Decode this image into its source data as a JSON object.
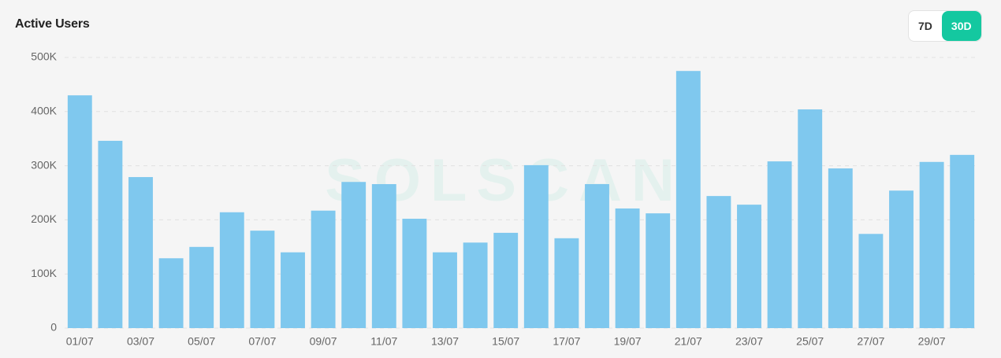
{
  "chart_data": {
    "type": "bar",
    "title": "Active Users",
    "watermark": "SOLSCAN",
    "controls": [
      "7D",
      "30D"
    ],
    "active_control": 1,
    "categories": [
      "01/07",
      null,
      "03/07",
      null,
      "05/07",
      null,
      "07/07",
      null,
      "09/07",
      null,
      "11/07",
      null,
      "13/07",
      null,
      "15/07",
      null,
      "17/07",
      null,
      "19/07",
      null,
      "21/07",
      null,
      "23/07",
      null,
      "25/07",
      null,
      "27/07",
      null,
      "29/07",
      null
    ],
    "values": [
      430000,
      346000,
      279000,
      129000,
      150000,
      214000,
      180000,
      140000,
      217000,
      270000,
      266000,
      202000,
      140000,
      158000,
      176000,
      301000,
      166000,
      266000,
      221000,
      212000,
      475000,
      244000,
      228000,
      308000,
      404000,
      295000,
      174000,
      254000,
      307000,
      320000
    ],
    "color": "#7fc8ee",
    "ylim": [
      0,
      500000
    ],
    "yticks": [
      0,
      {
        "value": 100000,
        "label": "100K"
      },
      {
        "value": 200000,
        "label": "200K"
      },
      {
        "value": 300000,
        "label": "300K"
      },
      {
        "value": 400000,
        "label": "400K"
      },
      {
        "value": 500000,
        "label": "500K"
      }
    ],
    "grid": true
  }
}
